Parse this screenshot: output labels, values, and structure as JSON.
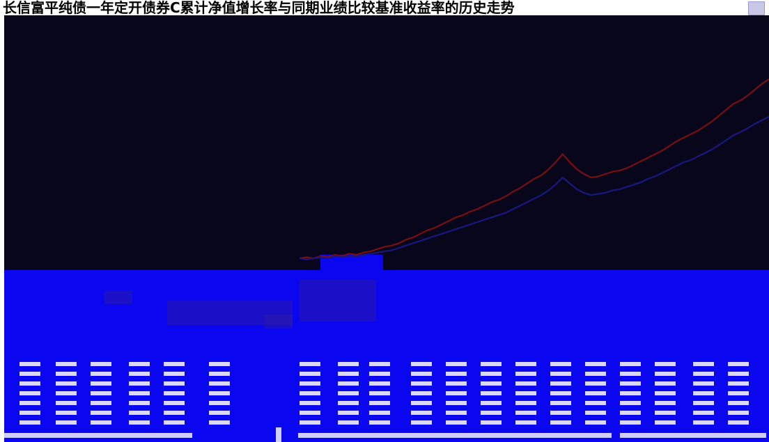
{
  "title": "长信富平纯债一年定开债券C累计净值增长率与同期业绩比较基准收益率的历史走势",
  "colors": {
    "background": "#07061a",
    "band": "#0a06f0",
    "series_fund": "#7a0e12",
    "series_benchmark": "#1b1780",
    "text_artifact": "#ffffff"
  },
  "icons": {
    "corner": "window-corner-icon"
  },
  "chart_data": {
    "type": "line",
    "title": "长信富平纯债一年定开债券C累计净值增长率与同期业绩比较基准收益率的历史走势",
    "xlabel": "",
    "ylabel": "",
    "grid": false,
    "legend": "none",
    "x_points": 180,
    "series": [
      {
        "color": "#7a0e12",
        "values": [
          0.0,
          0.1,
          0.0,
          0.2,
          0.1,
          0.3,
          0.2,
          0.4,
          0.3,
          0.5,
          0.6,
          0.8,
          1.0,
          1.1,
          1.3,
          1.6,
          1.8,
          2.1,
          2.4,
          2.6,
          2.9,
          3.2,
          3.5,
          3.7,
          4.0,
          4.2,
          4.5,
          4.8,
          5.0,
          5.3,
          5.7,
          6.0,
          6.4,
          6.8,
          7.1,
          7.6,
          8.2,
          8.9,
          8.2,
          7.6,
          7.2,
          6.9,
          7.0,
          7.2,
          7.4,
          7.5,
          7.7,
          8.0,
          8.3,
          8.6,
          8.9,
          9.2,
          9.6,
          10.0,
          10.3,
          10.6,
          10.9,
          11.3,
          11.7,
          12.2,
          12.7,
          13.2,
          13.5,
          13.9,
          14.4,
          14.9,
          15.3
        ]
      },
      {
        "color": "#1b1780",
        "values": [
          0.0,
          -0.1,
          0.0,
          0.1,
          0.0,
          0.2,
          0.1,
          0.2,
          0.1,
          0.3,
          0.4,
          0.5,
          0.6,
          0.7,
          0.9,
          1.1,
          1.3,
          1.5,
          1.7,
          1.9,
          2.1,
          2.3,
          2.5,
          2.7,
          2.9,
          3.1,
          3.3,
          3.5,
          3.7,
          3.9,
          4.2,
          4.5,
          4.8,
          5.1,
          5.4,
          5.8,
          6.3,
          6.9,
          6.4,
          5.9,
          5.6,
          5.4,
          5.5,
          5.6,
          5.8,
          5.9,
          6.1,
          6.3,
          6.5,
          6.8,
          7.0,
          7.3,
          7.6,
          7.9,
          8.2,
          8.4,
          8.7,
          9.0,
          9.3,
          9.7,
          10.1,
          10.5,
          10.8,
          11.1,
          11.5,
          11.8,
          12.1
        ]
      }
    ],
    "ylim": [
      -1,
      16
    ]
  }
}
